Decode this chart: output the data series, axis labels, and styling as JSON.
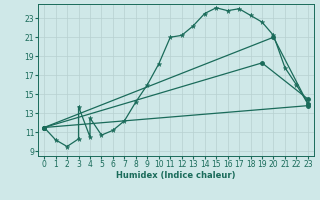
{
  "background_color": "#cfe8e8",
  "grid_color": "#b8d0d0",
  "line_color": "#1a6b5a",
  "xlabel": "Humidex (Indice chaleur)",
  "xlim": [
    -0.5,
    23.5
  ],
  "ylim": [
    8.5,
    24.5
  ],
  "xticks": [
    0,
    1,
    2,
    3,
    4,
    5,
    6,
    7,
    8,
    9,
    10,
    11,
    12,
    13,
    14,
    15,
    16,
    17,
    18,
    19,
    20,
    21,
    22,
    23
  ],
  "yticks": [
    9,
    11,
    13,
    15,
    17,
    19,
    21,
    23
  ],
  "line1_x": [
    0,
    1,
    2,
    3,
    3,
    4,
    4,
    5,
    6,
    7,
    8,
    9,
    10,
    11,
    12,
    13,
    14,
    15,
    16,
    17,
    18,
    19,
    20,
    21,
    22,
    23
  ],
  "line1_y": [
    11.5,
    10.2,
    9.5,
    10.3,
    13.7,
    10.5,
    12.5,
    10.7,
    11.2,
    12.2,
    14.2,
    16.0,
    18.2,
    21.0,
    21.2,
    22.2,
    23.5,
    24.1,
    23.8,
    24.0,
    23.3,
    22.6,
    21.2,
    17.8,
    16.0,
    14.0
  ],
  "line2_x": [
    0,
    20,
    23
  ],
  "line2_y": [
    11.5,
    21.0,
    14.0
  ],
  "line3_x": [
    0,
    19,
    23
  ],
  "line3_y": [
    11.5,
    18.3,
    14.5
  ],
  "line4_x": [
    0,
    23
  ],
  "line4_y": [
    11.5,
    13.8
  ],
  "marker": "o",
  "markersize": 2.5,
  "linewidth": 0.9
}
